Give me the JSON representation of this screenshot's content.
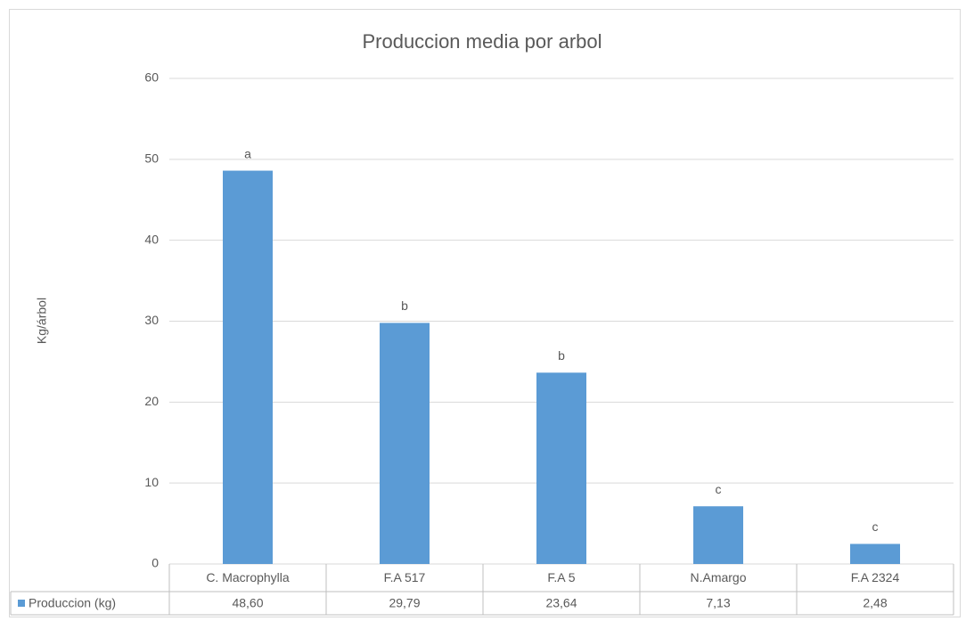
{
  "chart_data": {
    "type": "bar",
    "title": "Produccion media por arbol",
    "ylabel": "Kg/árbol",
    "categories": [
      "C. Macrophylla",
      "F.A 517",
      "F.A 5",
      "N.Amargo",
      "F.A 2324"
    ],
    "series": [
      {
        "name": "Produccion (kg)",
        "color": "#5b9bd5",
        "values": [
          48.6,
          29.79,
          23.64,
          7.13,
          2.48
        ],
        "value_labels": [
          "48,60",
          "29,79",
          "23,64",
          "7,13",
          "2,48"
        ]
      }
    ],
    "annotations": [
      "a",
      "b",
      "b",
      "c",
      "c"
    ],
    "ylim": [
      0,
      60
    ],
    "yticks": [
      0,
      10,
      20,
      30,
      40,
      50,
      60
    ],
    "grid": true
  }
}
